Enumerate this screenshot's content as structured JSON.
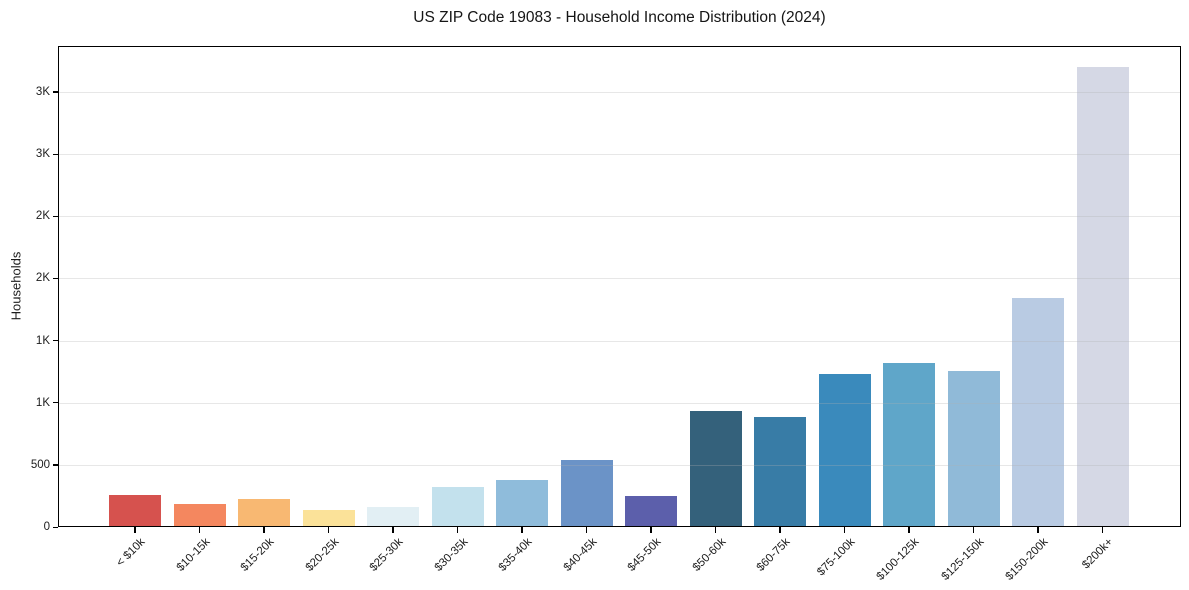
{
  "chart_data": {
    "type": "bar",
    "title": "US ZIP Code 19083 - Household Income Distribution (2024)",
    "xlabel": "",
    "ylabel": "Households",
    "categories": [
      "< $10k",
      "$10-15k",
      "$15-20k",
      "$20-25k",
      "$25-30k",
      "$30-35k",
      "$35-40k",
      "$40-45k",
      "$45-50k",
      "$50-60k",
      "$60-75k",
      "$75-100k",
      "$100-125k",
      "$125-150k",
      "$150-200k",
      "$200k+"
    ],
    "values": [
      255,
      185,
      225,
      140,
      165,
      320,
      375,
      540,
      250,
      935,
      885,
      1230,
      1320,
      1255,
      1840,
      3700
    ],
    "bar_colors": [
      "#d6524e",
      "#f4875f",
      "#f8b872",
      "#fbe299",
      "#e2eff4",
      "#c3e1ed",
      "#8fbcdb",
      "#6b93c7",
      "#5c5fab",
      "#34617b",
      "#387ca6",
      "#3a8abc",
      "#5fa6c9",
      "#90bad8",
      "#b9cbe3",
      "#d5d8e5"
    ],
    "ylim": [
      0,
      3870
    ],
    "yticks": [
      {
        "value": 0,
        "label": "0"
      },
      {
        "value": 500,
        "label": "500"
      },
      {
        "value": 1000,
        "label": "1K"
      },
      {
        "value": 1500,
        "label": "1K"
      },
      {
        "value": 2000,
        "label": "2K"
      },
      {
        "value": 2500,
        "label": "2K"
      },
      {
        "value": 3000,
        "label": "3K"
      },
      {
        "value": 3500,
        "label": "3K"
      }
    ],
    "grid": "horizontal-y",
    "grid_color": "#b0b0b0",
    "grid_alpha": 0.3,
    "legend": false,
    "background": "#ffffff",
    "axis_color": "#000000",
    "text_color": "#1c1c1c"
  }
}
